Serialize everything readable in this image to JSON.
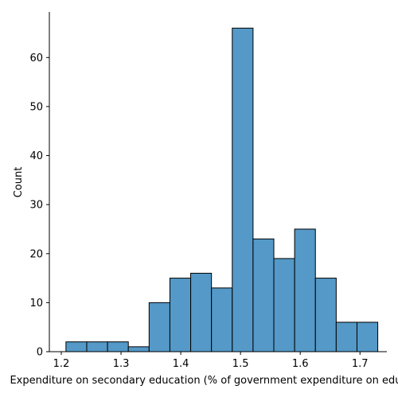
{
  "chart_data": {
    "type": "bar",
    "title": "",
    "xlabel": "Expenditure on secondary education (% of government expenditure on education)",
    "ylabel": "Count",
    "xlim": [
      1.18,
      1.745
    ],
    "ylim": [
      0,
      69.3
    ],
    "xticks": [
      1.2,
      1.3,
      1.4,
      1.5,
      1.6,
      1.7
    ],
    "xtick_labels": [
      "1.2",
      "1.3",
      "1.4",
      "1.5",
      "1.6",
      "1.7"
    ],
    "yticks": [
      0,
      10,
      20,
      30,
      40,
      50,
      60
    ],
    "ytick_labels": [
      "0",
      "10",
      "20",
      "30",
      "40",
      "50",
      "60"
    ],
    "bin_width": 0.0348,
    "bins": [
      {
        "x0": 1.2078,
        "x1": 1.2426,
        "count": 2
      },
      {
        "x0": 1.2426,
        "x1": 1.2774,
        "count": 2
      },
      {
        "x0": 1.2774,
        "x1": 1.3122,
        "count": 2
      },
      {
        "x0": 1.3122,
        "x1": 1.347,
        "count": 1
      },
      {
        "x0": 1.347,
        "x1": 1.3818,
        "count": 10
      },
      {
        "x0": 1.3818,
        "x1": 1.4166,
        "count": 15
      },
      {
        "x0": 1.4166,
        "x1": 1.4514,
        "count": 16
      },
      {
        "x0": 1.4514,
        "x1": 1.4862,
        "count": 13
      },
      {
        "x0": 1.4862,
        "x1": 1.521,
        "count": 66
      },
      {
        "x0": 1.521,
        "x1": 1.5558,
        "count": 23
      },
      {
        "x0": 1.5558,
        "x1": 1.5906,
        "count": 19
      },
      {
        "x0": 1.5906,
        "x1": 1.6254,
        "count": 25
      },
      {
        "x0": 1.6254,
        "x1": 1.6602,
        "count": 15
      },
      {
        "x0": 1.6602,
        "x1": 1.695,
        "count": 6
      },
      {
        "x0": 1.695,
        "x1": 1.7298,
        "count": 6
      }
    ],
    "bar_color": "#5499c7",
    "bar_edge_color": "#000000",
    "grid": false,
    "spines": [
      "left",
      "bottom"
    ]
  }
}
